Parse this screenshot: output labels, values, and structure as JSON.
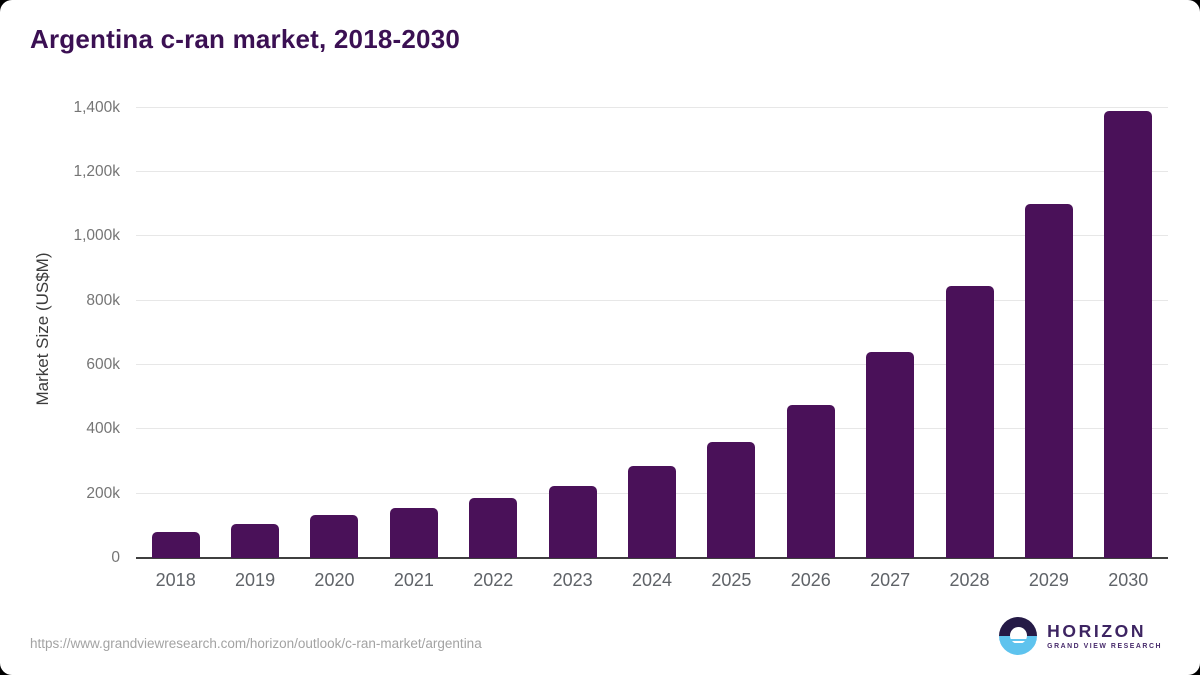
{
  "header": {
    "title": "Argentina c-ran market, 2018-2030"
  },
  "chart_data": {
    "type": "bar",
    "title": "Argentina c-ran market, 2018-2030",
    "categories": [
      "2018",
      "2019",
      "2020",
      "2021",
      "2022",
      "2023",
      "2024",
      "2025",
      "2026",
      "2027",
      "2028",
      "2029",
      "2030"
    ],
    "values": [
      80,
      105,
      135,
      155,
      185,
      225,
      285,
      360,
      475,
      640,
      845,
      1100,
      1390
    ],
    "xlabel": "",
    "ylabel": "Market Size (US$M)",
    "ylim": [
      0,
      1400
    ],
    "yticks": [
      0,
      200,
      400,
      600,
      800,
      1000,
      1200,
      1400
    ],
    "ytick_suffix": "k",
    "grid": true,
    "legend": false,
    "bar_color": "#4a1159",
    "grid_color": "#e7e7e7",
    "axis_line_color": "#3f3f3f",
    "ytick_label_color": "#757575",
    "xtick_label_color": "#5f6368",
    "title_color": "#3b1053"
  },
  "footer": {
    "url": "https://www.grandviewresearch.com/horizon/outlook/c-ran-market/argentina",
    "logo": {
      "name": "HORIZON",
      "subtitle": "GRAND VIEW RESEARCH",
      "icon": "horizon-sunrise-icon",
      "icon_top_color": "#251a46",
      "icon_bottom_color": "#5ec3ee",
      "text_color": "#3d2462"
    }
  }
}
